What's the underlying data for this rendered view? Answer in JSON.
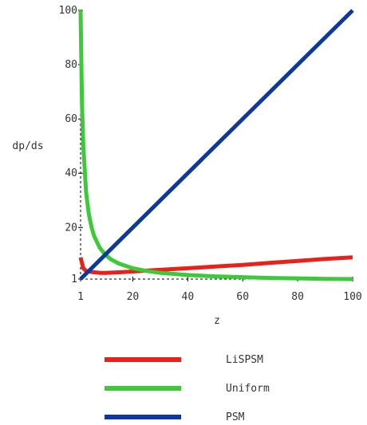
{
  "chart_data": {
    "type": "line",
    "xlabel": "z",
    "ylabel": "dp/ds",
    "xlim": [
      1,
      100
    ],
    "ylim": [
      1,
      100
    ],
    "x_ticks": [
      1,
      20,
      40,
      60,
      80,
      100
    ],
    "y_ticks": [
      1,
      20,
      40,
      60,
      80,
      100
    ],
    "grid": false,
    "legend_position": "bottom",
    "series": [
      {
        "name": "LiSPSM",
        "color": "#e8221a",
        "points": [
          [
            1,
            9
          ],
          [
            2,
            5
          ],
          [
            3,
            4
          ],
          [
            5,
            3.6
          ],
          [
            8,
            3.3
          ],
          [
            10,
            3.3
          ],
          [
            15,
            3.5
          ],
          [
            20,
            3.8
          ],
          [
            25,
            4.1
          ],
          [
            30,
            4.4
          ],
          [
            40,
            5
          ],
          [
            50,
            5.6
          ],
          [
            60,
            6.2
          ],
          [
            70,
            7
          ],
          [
            80,
            7.7
          ],
          [
            90,
            8.4
          ],
          [
            100,
            9
          ]
        ]
      },
      {
        "name": "Uniform",
        "color": "#3ec93a",
        "points": [
          [
            1,
            100
          ],
          [
            1.5,
            66
          ],
          [
            2,
            50
          ],
          [
            3,
            33
          ],
          [
            4,
            25
          ],
          [
            5,
            20
          ],
          [
            6,
            16.7
          ],
          [
            8,
            12.5
          ],
          [
            10,
            10
          ],
          [
            12,
            8.3
          ],
          [
            15,
            6.7
          ],
          [
            20,
            5
          ],
          [
            25,
            4
          ],
          [
            30,
            3.3
          ],
          [
            40,
            2.5
          ],
          [
            50,
            2
          ],
          [
            60,
            1.7
          ],
          [
            70,
            1.4
          ],
          [
            80,
            1.25
          ],
          [
            90,
            1.1
          ],
          [
            100,
            1
          ]
        ]
      },
      {
        "name": "PSM",
        "color": "#0d3a9a",
        "points": [
          [
            1,
            1
          ],
          [
            100,
            100
          ]
        ]
      }
    ]
  }
}
